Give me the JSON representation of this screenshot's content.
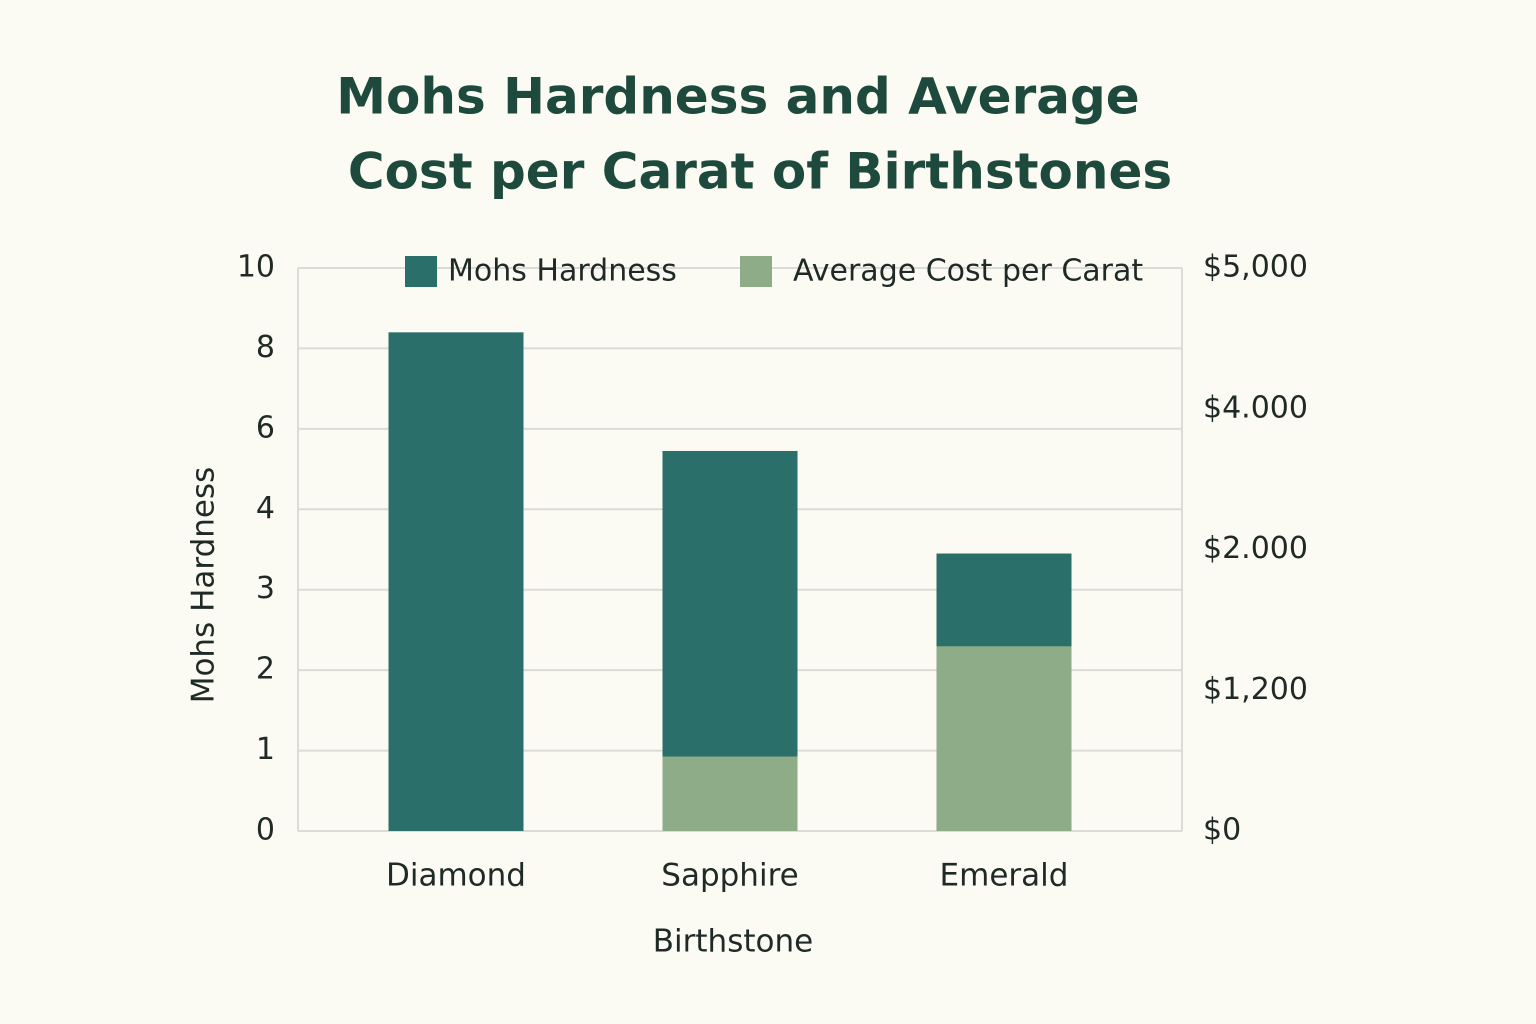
{
  "chart_data": {
    "type": "bar",
    "title": [
      "Mohs Hardness and Average",
      "Cost per Carat of Birthstones"
    ],
    "x_label": "Birthstone",
    "y_label": "Mohs Hardness",
    "categories": [
      "Diamond",
      "Sapphire",
      "Emerald"
    ],
    "series": [
      {
        "name": "Mohs Hardness",
        "color": "#2a6f6a",
        "values": [
          8.4,
          5.45,
          3.45
        ]
      },
      {
        "name": "Average Cost per Carat",
        "color": "#8fac88",
        "values": [
          0,
          635,
          1450
        ],
        "axis": "y2"
      }
    ],
    "ylim": [
      0,
      10
    ],
    "yticks": [
      0,
      1,
      2,
      3,
      4,
      6,
      8,
      10
    ],
    "y2lim": [
      0,
      5000
    ],
    "y2ticks": [
      {
        "value": 0,
        "label": "$0"
      },
      {
        "value": 1200,
        "label": "$1,200"
      },
      {
        "value": 2000,
        "label": "$2.000"
      },
      {
        "value": 4000,
        "label": "$4.000"
      },
      {
        "value": 5000,
        "label": "$5,000"
      }
    ],
    "grid": true,
    "legend": "top"
  }
}
